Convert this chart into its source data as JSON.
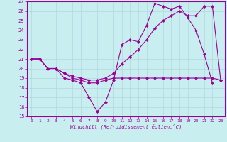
{
  "xlabel": "Windchill (Refroidissement éolien,°C)",
  "background_color": "#c8eef0",
  "grid_color": "#b0d8dc",
  "line_color": "#990099",
  "xlim": [
    -0.5,
    23.5
  ],
  "ylim": [
    15,
    27
  ],
  "xticks": [
    0,
    1,
    2,
    3,
    4,
    5,
    6,
    7,
    8,
    9,
    10,
    11,
    12,
    13,
    14,
    15,
    16,
    17,
    18,
    19,
    20,
    21,
    22,
    23
  ],
  "yticks": [
    15,
    16,
    17,
    18,
    19,
    20,
    21,
    22,
    23,
    24,
    25,
    26,
    27
  ],
  "line1_x": [
    0,
    1,
    2,
    3,
    4,
    5,
    6,
    7,
    8,
    9,
    10,
    11,
    12,
    13,
    14,
    15,
    16,
    17,
    18,
    19,
    20,
    21,
    22
  ],
  "line1_y": [
    21,
    21,
    20,
    20,
    19,
    18.8,
    18.5,
    17,
    15.5,
    16.5,
    18.8,
    22.5,
    23,
    22.8,
    24.5,
    26.8,
    26.5,
    26.2,
    26.5,
    25.3,
    24,
    21.5,
    18.5
  ],
  "line2_x": [
    0,
    1,
    2,
    3,
    4,
    5,
    6,
    7,
    8,
    9,
    10,
    11,
    12,
    13,
    14,
    15,
    16,
    17,
    18,
    19,
    20,
    21,
    22,
    23
  ],
  "line2_y": [
    21,
    21,
    20,
    20,
    19.5,
    19,
    18.8,
    18.5,
    18.5,
    18.8,
    19,
    19,
    19,
    19,
    19,
    19,
    19,
    19,
    19,
    19,
    19,
    19,
    19,
    18.8
  ],
  "line3_x": [
    0,
    1,
    2,
    3,
    4,
    5,
    6,
    7,
    8,
    9,
    10,
    11,
    12,
    13,
    14,
    15,
    16,
    17,
    18,
    19,
    20,
    21,
    22,
    23
  ],
  "line3_y": [
    21,
    21,
    20,
    20,
    19.5,
    19.2,
    19,
    18.8,
    18.8,
    19,
    19.5,
    20.5,
    21.2,
    22,
    23,
    24.2,
    25,
    25.5,
    26,
    25.5,
    25.5,
    26.5,
    26.5,
    18.8
  ],
  "markersize": 2.5,
  "linewidth": 0.8
}
